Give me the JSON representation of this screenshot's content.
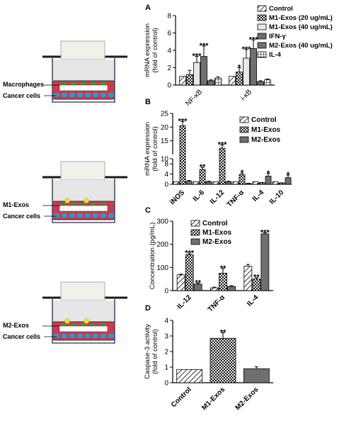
{
  "colors": {
    "beaker_outline": "#1a1a1a",
    "insert_fill": "#d8d8d8",
    "medium_fill": "#f1f1ea",
    "cancer_layer": "#cc3b4a",
    "cancer_cell": "#1a9fe0",
    "macrophage_cell": "#2e9b3c",
    "exosome": "#f2e21a",
    "bar_dark": "#6f6f6f",
    "error_bar": "#000000"
  },
  "schematics": [
    {
      "top_label": "Macrophages",
      "bottom_label": "Cancer cells",
      "cell": "macrophage"
    },
    {
      "top_label": "M1-Exos",
      "bottom_label": "Cancer cells",
      "cell": "exosome"
    },
    {
      "top_label": "M2-Exos",
      "bottom_label": "Cancer cells",
      "cell": "exosome"
    }
  ],
  "chart_data": [
    {
      "panel": "A",
      "type": "bar",
      "ylabel": "mRNA expression\n(fold of control)",
      "ylim": [
        0,
        8
      ],
      "yticks": [
        0,
        2,
        4,
        6,
        8
      ],
      "categories": [
        "NF-κB",
        "i-κB"
      ],
      "legend": {
        "placement": "top-right"
      },
      "series": [
        {
          "name": "Control",
          "pattern": "hatch",
          "values": [
            1.0,
            1.0
          ],
          "errors": [
            0.0,
            0.0
          ],
          "sig": [
            "",
            ""
          ]
        },
        {
          "name": "M1-Exos (20 ug/mL)",
          "pattern": "check",
          "values": [
            1.2,
            1.5
          ],
          "errors": [
            0.5,
            0.5
          ],
          "sig": [
            "",
            "*"
          ]
        },
        {
          "name": "M1-Exos (40 ug/mL)",
          "pattern": "light",
          "values": [
            2.6,
            3.1
          ],
          "errors": [
            0.7,
            1.0
          ],
          "sig": [
            "***",
            "***"
          ]
        },
        {
          "name": "IFN-γ",
          "pattern": "dark",
          "values": [
            3.3,
            4.2
          ],
          "errors": [
            1.2,
            1.0
          ],
          "sig": [
            "***",
            "***"
          ]
        },
        {
          "name": "M2-Exos (40 ug/mL)",
          "pattern": "dark",
          "values": [
            0.5,
            0.4
          ],
          "errors": [
            0.1,
            0.1
          ],
          "sig": [
            "",
            ""
          ]
        },
        {
          "name": "IL-4",
          "pattern": "grid",
          "values": [
            0.8,
            0.6
          ],
          "errors": [
            0.15,
            0.1
          ],
          "sig": [
            "",
            ""
          ]
        }
      ]
    },
    {
      "panel": "B",
      "type": "bar",
      "ylabel": "mRNA expression\n(fold of control)",
      "axis_break": {
        "lower": [
          0,
          10
        ],
        "upper": [
          10,
          25
        ]
      },
      "yticks_lower": [
        0,
        4,
        8
      ],
      "yticks_upper": [
        10,
        15,
        20,
        25
      ],
      "categories": [
        "iNOS",
        "IL-6",
        "IL-12",
        "TNF-α",
        "IL-4",
        "IL-10"
      ],
      "legend": {
        "placement": "top-right"
      },
      "series": [
        {
          "name": "Control",
          "pattern": "hatch",
          "values": [
            1,
            1,
            1,
            1,
            1,
            1
          ],
          "errors": [
            0,
            0,
            0,
            0,
            0,
            0
          ],
          "sig": [
            "",
            "",
            "",
            "",
            "",
            ""
          ]
        },
        {
          "name": "M1-Exos",
          "pattern": "check",
          "values": [
            20.5,
            5.8,
            12.3,
            3.8,
            0.6,
            0.5
          ],
          "errors": [
            1.5,
            0.8,
            1.2,
            0.6,
            0.1,
            0.1
          ],
          "sig": [
            "***",
            "**",
            "***",
            "*",
            "",
            ""
          ]
        },
        {
          "name": "M2-Exos",
          "pattern": "dark",
          "values": [
            1.2,
            1.0,
            1.0,
            0.3,
            3.2,
            2.6
          ],
          "errors": [
            0.3,
            0.2,
            0.2,
            0.1,
            1.0,
            1.0
          ],
          "sig": [
            "",
            "",
            "",
            "",
            "*",
            "*"
          ]
        }
      ]
    },
    {
      "panel": "C",
      "type": "bar",
      "ylabel": "Concentration (pg/mL)",
      "ylim": [
        0,
        300
      ],
      "yticks": [
        0,
        100,
        200,
        300
      ],
      "categories": [
        "IL-12",
        "TNF-α",
        "IL-4"
      ],
      "legend": {
        "placement": "top-left"
      },
      "series": [
        {
          "name": "Control",
          "pattern": "hatch",
          "values": [
            68,
            12,
            105
          ],
          "errors": [
            3,
            3,
            8
          ],
          "sig": [
            "",
            "",
            ""
          ]
        },
        {
          "name": "M1-Exos",
          "pattern": "check",
          "values": [
            155,
            75,
            50
          ],
          "errors": [
            5,
            20,
            6
          ],
          "sig": [
            "***",
            "**",
            "**"
          ]
        },
        {
          "name": "M2-Exos",
          "pattern": "dark",
          "values": [
            28,
            18,
            245
          ],
          "errors": [
            4,
            3,
            5
          ],
          "sig": [
            "**",
            "",
            "***"
          ]
        }
      ]
    },
    {
      "panel": "D",
      "type": "bar",
      "ylabel": "Caspase-3 activity\n(fold of control)",
      "ylim": [
        0,
        4
      ],
      "yticks": [
        0,
        1,
        2,
        3,
        4
      ],
      "categories": [
        "Control",
        "M1-Exos",
        "M2-Exos"
      ],
      "series": [
        {
          "patterns": [
            "hatch",
            "check",
            "dark"
          ],
          "values": [
            0.85,
            2.85,
            0.9
          ],
          "errors": [
            0.0,
            0.35,
            0.12
          ],
          "sig": [
            "",
            "**",
            ""
          ]
        }
      ]
    }
  ]
}
